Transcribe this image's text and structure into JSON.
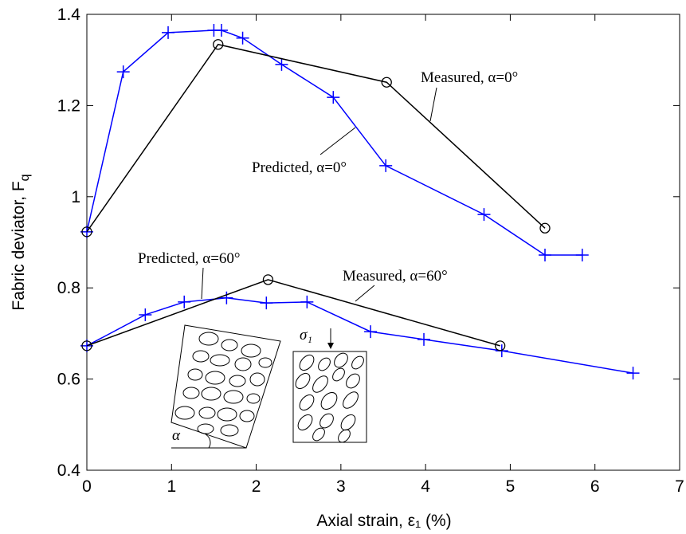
{
  "chart_data": {
    "type": "line",
    "xlabel": "Axial strain, ε₁   (%)",
    "ylabel": "Fabric deviator, F",
    "ylabel_subscript": "q",
    "xlim": [
      0,
      7
    ],
    "xticks": [
      0,
      1,
      2,
      3,
      4,
      5,
      6,
      7
    ],
    "ylim": [
      0.4,
      1.4
    ],
    "yticks": [
      0.4,
      0.6,
      0.8,
      1,
      1.2,
      1.4
    ],
    "grid": false,
    "series": [
      {
        "name": "Predicted, α=0°",
        "color": "#0000ff",
        "marker": "plus",
        "x": [
          0,
          0.43,
          0.96,
          1.5,
          1.59,
          1.84,
          2.3,
          2.91,
          3.53,
          4.69,
          5.41,
          5.85
        ],
        "values": [
          0.923,
          1.274,
          1.36,
          1.365,
          1.365,
          1.348,
          1.29,
          1.218,
          1.068,
          0.961,
          0.872,
          0.872
        ]
      },
      {
        "name": "Measured, α=0°",
        "color": "#000000",
        "marker": "circle",
        "x": [
          0,
          1.55,
          3.54,
          5.41
        ],
        "values": [
          0.923,
          1.334,
          1.251,
          0.931
        ]
      },
      {
        "name": "Predicted, α=60°",
        "color": "#0000ff",
        "marker": "plus",
        "x": [
          0,
          0.69,
          1.15,
          1.65,
          2.12,
          2.6,
          3.35,
          3.98,
          4.9,
          6.45
        ],
        "values": [
          0.673,
          0.741,
          0.769,
          0.778,
          0.767,
          0.769,
          0.704,
          0.687,
          0.662,
          0.613
        ]
      },
      {
        "name": "Measured, α=60°",
        "color": "#000000",
        "marker": "circle",
        "x": [
          0,
          2.14,
          4.88
        ],
        "values": [
          0.673,
          0.818,
          0.673
        ]
      }
    ],
    "inset_labels": [
      "α",
      "σ₁"
    ]
  }
}
